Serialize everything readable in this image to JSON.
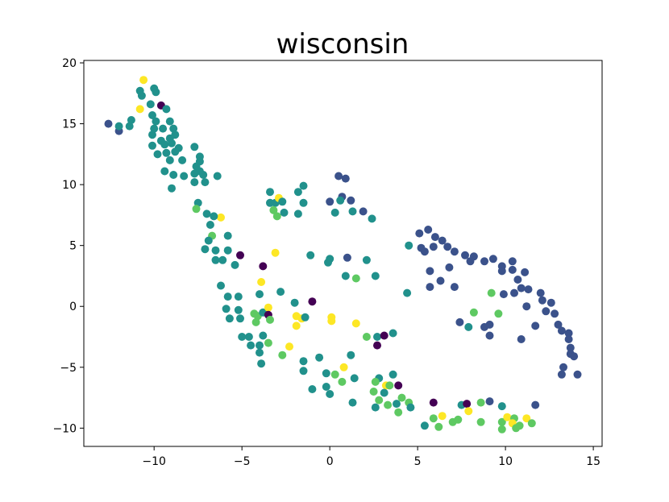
{
  "chart_data": {
    "type": "scatter",
    "title": "wisconsin",
    "xlabel": "",
    "ylabel": "",
    "xlim": [
      -14,
      15.5
    ],
    "ylim": [
      -11.5,
      20.2
    ],
    "xticks": [
      -10,
      -5,
      0,
      5,
      10,
      15
    ],
    "yticks": [
      -10,
      -5,
      0,
      5,
      10,
      15,
      20
    ],
    "grid": false,
    "legend": "none",
    "colormap": "viridis",
    "colors": {
      "c0": "#440154",
      "c1": "#3b528b",
      "c2": "#21918c",
      "c3": "#5ec962",
      "c4": "#fde725"
    },
    "points": [
      {
        "x": -12.6,
        "y": 15.0,
        "c": 1
      },
      {
        "x": -12.0,
        "y": 14.4,
        "c": 1
      },
      {
        "x": -12.0,
        "y": 14.8,
        "c": 2
      },
      {
        "x": -11.3,
        "y": 15.3,
        "c": 2
      },
      {
        "x": -11.4,
        "y": 14.8,
        "c": 2
      },
      {
        "x": -10.8,
        "y": 16.2,
        "c": 4
      },
      {
        "x": -10.6,
        "y": 18.6,
        "c": 4
      },
      {
        "x": -10.8,
        "y": 17.7,
        "c": 2
      },
      {
        "x": -10.7,
        "y": 17.3,
        "c": 2
      },
      {
        "x": -10.0,
        "y": 17.9,
        "c": 2
      },
      {
        "x": -9.9,
        "y": 17.6,
        "c": 2
      },
      {
        "x": -10.2,
        "y": 16.6,
        "c": 2
      },
      {
        "x": -9.6,
        "y": 16.5,
        "c": 0
      },
      {
        "x": -9.3,
        "y": 16.2,
        "c": 2
      },
      {
        "x": -10.1,
        "y": 15.7,
        "c": 2
      },
      {
        "x": -9.9,
        "y": 15.2,
        "c": 2
      },
      {
        "x": -10.0,
        "y": 14.6,
        "c": 2
      },
      {
        "x": -10.1,
        "y": 14.1,
        "c": 2
      },
      {
        "x": -9.5,
        "y": 14.6,
        "c": 2
      },
      {
        "x": -9.1,
        "y": 15.2,
        "c": 2
      },
      {
        "x": -8.9,
        "y": 14.6,
        "c": 2
      },
      {
        "x": -9.6,
        "y": 13.6,
        "c": 2
      },
      {
        "x": -9.1,
        "y": 13.8,
        "c": 2
      },
      {
        "x": -8.8,
        "y": 14.1,
        "c": 2
      },
      {
        "x": -10.1,
        "y": 13.2,
        "c": 2
      },
      {
        "x": -9.4,
        "y": 13.3,
        "c": 2
      },
      {
        "x": -9.0,
        "y": 13.4,
        "c": 2
      },
      {
        "x": -8.6,
        "y": 13.0,
        "c": 2
      },
      {
        "x": -8.8,
        "y": 12.7,
        "c": 2
      },
      {
        "x": -9.8,
        "y": 12.5,
        "c": 2
      },
      {
        "x": -9.3,
        "y": 12.6,
        "c": 2
      },
      {
        "x": -9.1,
        "y": 12.0,
        "c": 2
      },
      {
        "x": -8.4,
        "y": 12.0,
        "c": 2
      },
      {
        "x": -7.7,
        "y": 13.1,
        "c": 2
      },
      {
        "x": -7.4,
        "y": 12.3,
        "c": 2
      },
      {
        "x": -7.4,
        "y": 11.9,
        "c": 2
      },
      {
        "x": -7.6,
        "y": 11.5,
        "c": 2
      },
      {
        "x": -7.4,
        "y": 11.1,
        "c": 2
      },
      {
        "x": -9.4,
        "y": 11.1,
        "c": 2
      },
      {
        "x": -8.9,
        "y": 10.8,
        "c": 2
      },
      {
        "x": -8.3,
        "y": 10.7,
        "c": 2
      },
      {
        "x": -7.7,
        "y": 10.9,
        "c": 2
      },
      {
        "x": -7.2,
        "y": 10.8,
        "c": 2
      },
      {
        "x": -7.7,
        "y": 10.2,
        "c": 2
      },
      {
        "x": -7.1,
        "y": 10.2,
        "c": 2
      },
      {
        "x": -6.4,
        "y": 10.7,
        "c": 2
      },
      {
        "x": -9.0,
        "y": 9.7,
        "c": 2
      },
      {
        "x": -7.5,
        "y": 8.5,
        "c": 2
      },
      {
        "x": -7.6,
        "y": 8.0,
        "c": 3
      },
      {
        "x": -7.0,
        "y": 7.6,
        "c": 2
      },
      {
        "x": -6.2,
        "y": 7.3,
        "c": 4
      },
      {
        "x": -6.6,
        "y": 7.4,
        "c": 2
      },
      {
        "x": -6.8,
        "y": 6.7,
        "c": 2
      },
      {
        "x": -6.7,
        "y": 5.8,
        "c": 3
      },
      {
        "x": -6.9,
        "y": 5.4,
        "c": 2
      },
      {
        "x": -5.8,
        "y": 5.8,
        "c": 2
      },
      {
        "x": -7.1,
        "y": 4.7,
        "c": 2
      },
      {
        "x": -6.5,
        "y": 4.6,
        "c": 2
      },
      {
        "x": -5.8,
        "y": 4.6,
        "c": 2
      },
      {
        "x": -6.5,
        "y": 3.8,
        "c": 2
      },
      {
        "x": -6.1,
        "y": 3.8,
        "c": 2
      },
      {
        "x": -5.4,
        "y": 3.4,
        "c": 2
      },
      {
        "x": -5.1,
        "y": 4.2,
        "c": 0
      },
      {
        "x": -6.2,
        "y": 1.7,
        "c": 2
      },
      {
        "x": -5.8,
        "y": 0.8,
        "c": 2
      },
      {
        "x": -5.2,
        "y": 0.8,
        "c": 2
      },
      {
        "x": -5.9,
        "y": -0.2,
        "c": 2
      },
      {
        "x": -5.2,
        "y": -0.3,
        "c": 2
      },
      {
        "x": -5.7,
        "y": -1.0,
        "c": 2
      },
      {
        "x": -5.1,
        "y": -1.0,
        "c": 2
      },
      {
        "x": -4.3,
        "y": -0.6,
        "c": 3
      },
      {
        "x": -4.1,
        "y": -0.8,
        "c": 3
      },
      {
        "x": -4.2,
        "y": -1.3,
        "c": 3
      },
      {
        "x": -3.8,
        "y": -0.5,
        "c": 2
      },
      {
        "x": -3.5,
        "y": -0.1,
        "c": 4
      },
      {
        "x": -3.5,
        "y": -0.7,
        "c": 0
      },
      {
        "x": -3.4,
        "y": -1.1,
        "c": 3
      },
      {
        "x": -4.0,
        "y": 1.0,
        "c": 2
      },
      {
        "x": -3.9,
        "y": 2.0,
        "c": 4
      },
      {
        "x": -3.8,
        "y": 3.3,
        "c": 0
      },
      {
        "x": -3.1,
        "y": 4.4,
        "c": 4
      },
      {
        "x": -2.8,
        "y": 1.2,
        "c": 2
      },
      {
        "x": -5.0,
        "y": -2.5,
        "c": 2
      },
      {
        "x": -4.6,
        "y": -2.5,
        "c": 2
      },
      {
        "x": -4.5,
        "y": -3.2,
        "c": 2
      },
      {
        "x": -4.0,
        "y": -3.2,
        "c": 2
      },
      {
        "x": -3.8,
        "y": -2.4,
        "c": 2
      },
      {
        "x": -4.0,
        "y": -3.8,
        "c": 2
      },
      {
        "x": -3.5,
        "y": -3.0,
        "c": 3
      },
      {
        "x": -3.9,
        "y": -4.7,
        "c": 2
      },
      {
        "x": -2.7,
        "y": -4.0,
        "c": 3
      },
      {
        "x": -2.3,
        "y": -3.3,
        "c": 4
      },
      {
        "x": -3.4,
        "y": 8.5,
        "c": 2
      },
      {
        "x": -3.4,
        "y": 9.4,
        "c": 2
      },
      {
        "x": -3.1,
        "y": 8.5,
        "c": 2
      },
      {
        "x": -2.9,
        "y": 8.9,
        "c": 4
      },
      {
        "x": -2.7,
        "y": 8.6,
        "c": 2
      },
      {
        "x": -3.2,
        "y": 7.9,
        "c": 3
      },
      {
        "x": -3.0,
        "y": 7.4,
        "c": 3
      },
      {
        "x": -2.6,
        "y": 7.7,
        "c": 2
      },
      {
        "x": -1.8,
        "y": 9.4,
        "c": 2
      },
      {
        "x": -1.5,
        "y": 9.9,
        "c": 2
      },
      {
        "x": -1.5,
        "y": 8.5,
        "c": 2
      },
      {
        "x": -1.8,
        "y": 7.6,
        "c": 2
      },
      {
        "x": -2.0,
        "y": 0.3,
        "c": 2
      },
      {
        "x": -1.6,
        "y": -1.0,
        "c": 4
      },
      {
        "x": -1.4,
        "y": -0.9,
        "c": 2
      },
      {
        "x": -1.9,
        "y": -0.8,
        "c": 4
      },
      {
        "x": -1.9,
        "y": -1.6,
        "c": 4
      },
      {
        "x": -1.0,
        "y": 0.4,
        "c": 0
      },
      {
        "x": -1.1,
        "y": 4.2,
        "c": 2
      },
      {
        "x": -0.1,
        "y": 3.6,
        "c": 2
      },
      {
        "x": 0.0,
        "y": 3.9,
        "c": 2
      },
      {
        "x": -1.5,
        "y": -4.5,
        "c": 2
      },
      {
        "x": -0.6,
        "y": -4.2,
        "c": 2
      },
      {
        "x": -1.5,
        "y": -5.3,
        "c": 2
      },
      {
        "x": -0.2,
        "y": -5.5,
        "c": 2
      },
      {
        "x": -1.0,
        "y": -6.8,
        "c": 2
      },
      {
        "x": -0.2,
        "y": -6.6,
        "c": 2
      },
      {
        "x": 0.1,
        "y": -0.9,
        "c": 4
      },
      {
        "x": 0.1,
        "y": -1.2,
        "c": 4
      },
      {
        "x": 0.3,
        "y": -5.6,
        "c": 3
      },
      {
        "x": 0.0,
        "y": -7.2,
        "c": 2
      },
      {
        "x": 0.7,
        "y": -6.2,
        "c": 3
      },
      {
        "x": 0.8,
        "y": -5.0,
        "c": 4
      },
      {
        "x": 1.2,
        "y": -4.0,
        "c": 2
      },
      {
        "x": 1.5,
        "y": -1.4,
        "c": 4
      },
      {
        "x": 1.4,
        "y": -5.9,
        "c": 2
      },
      {
        "x": 1.3,
        "y": -7.9,
        "c": 2
      },
      {
        "x": 0.5,
        "y": 10.7,
        "c": 1
      },
      {
        "x": 0.9,
        "y": 10.5,
        "c": 1
      },
      {
        "x": 0.0,
        "y": 8.6,
        "c": 1
      },
      {
        "x": 0.7,
        "y": 9.0,
        "c": 1
      },
      {
        "x": 0.6,
        "y": 8.7,
        "c": 2
      },
      {
        "x": 1.2,
        "y": 8.7,
        "c": 1
      },
      {
        "x": 0.3,
        "y": 7.7,
        "c": 2
      },
      {
        "x": 1.3,
        "y": 7.8,
        "c": 2
      },
      {
        "x": 1.9,
        "y": 7.8,
        "c": 1
      },
      {
        "x": 2.4,
        "y": 7.2,
        "c": 2
      },
      {
        "x": 1.0,
        "y": 4.0,
        "c": 1
      },
      {
        "x": 2.1,
        "y": 3.8,
        "c": 2
      },
      {
        "x": 0.9,
        "y": 2.5,
        "c": 2
      },
      {
        "x": 1.5,
        "y": 2.3,
        "c": 3
      },
      {
        "x": 2.6,
        "y": 2.5,
        "c": 2
      },
      {
        "x": 2.1,
        "y": -2.5,
        "c": 3
      },
      {
        "x": 2.7,
        "y": -2.5,
        "c": 2
      },
      {
        "x": 2.7,
        "y": -3.2,
        "c": 0
      },
      {
        "x": 3.1,
        "y": -2.4,
        "c": 0
      },
      {
        "x": 3.6,
        "y": -2.2,
        "c": 2
      },
      {
        "x": 2.8,
        "y": -5.9,
        "c": 2
      },
      {
        "x": 2.6,
        "y": -6.2,
        "c": 3
      },
      {
        "x": 3.2,
        "y": -6.5,
        "c": 4
      },
      {
        "x": 3.6,
        "y": -5.6,
        "c": 2
      },
      {
        "x": 3.4,
        "y": -6.5,
        "c": 3
      },
      {
        "x": 3.9,
        "y": -6.5,
        "c": 0
      },
      {
        "x": 2.5,
        "y": -7.0,
        "c": 3
      },
      {
        "x": 3.1,
        "y": -7.1,
        "c": 2
      },
      {
        "x": 2.8,
        "y": -7.7,
        "c": 3
      },
      {
        "x": 3.3,
        "y": -8.1,
        "c": 3
      },
      {
        "x": 3.8,
        "y": -8.0,
        "c": 2
      },
      {
        "x": 2.6,
        "y": -8.3,
        "c": 2
      },
      {
        "x": 4.1,
        "y": -7.5,
        "c": 3
      },
      {
        "x": 4.5,
        "y": -7.9,
        "c": 3
      },
      {
        "x": 3.9,
        "y": -8.7,
        "c": 3
      },
      {
        "x": 4.6,
        "y": -8.3,
        "c": 2
      },
      {
        "x": 4.5,
        "y": 5.0,
        "c": 2
      },
      {
        "x": 4.4,
        "y": 1.1,
        "c": 2
      },
      {
        "x": 5.1,
        "y": 6.0,
        "c": 1
      },
      {
        "x": 5.2,
        "y": 4.8,
        "c": 1
      },
      {
        "x": 5.4,
        "y": 4.5,
        "c": 1
      },
      {
        "x": 5.6,
        "y": 6.3,
        "c": 1
      },
      {
        "x": 5.9,
        "y": 4.9,
        "c": 1
      },
      {
        "x": 6.0,
        "y": 5.7,
        "c": 1
      },
      {
        "x": 6.4,
        "y": 5.4,
        "c": 1
      },
      {
        "x": 6.7,
        "y": 4.9,
        "c": 1
      },
      {
        "x": 7.1,
        "y": 4.5,
        "c": 1
      },
      {
        "x": 5.7,
        "y": 2.9,
        "c": 1
      },
      {
        "x": 5.7,
        "y": 1.6,
        "c": 1
      },
      {
        "x": 6.3,
        "y": 2.1,
        "c": 1
      },
      {
        "x": 6.8,
        "y": 3.2,
        "c": 1
      },
      {
        "x": 7.1,
        "y": 1.6,
        "c": 1
      },
      {
        "x": 7.7,
        "y": 4.2,
        "c": 1
      },
      {
        "x": 8.0,
        "y": 3.7,
        "c": 1
      },
      {
        "x": 8.2,
        "y": 4.1,
        "c": 1
      },
      {
        "x": 7.4,
        "y": -1.3,
        "c": 1
      },
      {
        "x": 7.9,
        "y": -1.7,
        "c": 2
      },
      {
        "x": 8.2,
        "y": -0.5,
        "c": 3
      },
      {
        "x": 8.8,
        "y": 3.7,
        "c": 1
      },
      {
        "x": 9.3,
        "y": 3.9,
        "c": 1
      },
      {
        "x": 9.2,
        "y": 1.1,
        "c": 3
      },
      {
        "x": 8.8,
        "y": -1.7,
        "c": 1
      },
      {
        "x": 9.1,
        "y": -1.5,
        "c": 1
      },
      {
        "x": 9.1,
        "y": -2.4,
        "c": 1
      },
      {
        "x": 9.6,
        "y": -0.6,
        "c": 3
      },
      {
        "x": 9.8,
        "y": 3.3,
        "c": 1
      },
      {
        "x": 9.8,
        "y": 2.9,
        "c": 1
      },
      {
        "x": 9.9,
        "y": 1.0,
        "c": 1
      },
      {
        "x": 10.4,
        "y": 3.7,
        "c": 1
      },
      {
        "x": 10.4,
        "y": 3.0,
        "c": 1
      },
      {
        "x": 10.7,
        "y": 2.2,
        "c": 1
      },
      {
        "x": 10.5,
        "y": 1.1,
        "c": 1
      },
      {
        "x": 10.9,
        "y": 1.5,
        "c": 1
      },
      {
        "x": 11.1,
        "y": 2.8,
        "c": 1
      },
      {
        "x": 11.3,
        "y": 1.4,
        "c": 1
      },
      {
        "x": 11.2,
        "y": 0.0,
        "c": 1
      },
      {
        "x": 11.7,
        "y": -1.6,
        "c": 1
      },
      {
        "x": 10.9,
        "y": -2.7,
        "c": 1
      },
      {
        "x": 12.0,
        "y": 1.1,
        "c": 1
      },
      {
        "x": 12.1,
        "y": 0.5,
        "c": 1
      },
      {
        "x": 12.6,
        "y": 0.3,
        "c": 1
      },
      {
        "x": 12.3,
        "y": -0.4,
        "c": 1
      },
      {
        "x": 12.8,
        "y": -0.6,
        "c": 1
      },
      {
        "x": 13.0,
        "y": -1.5,
        "c": 1
      },
      {
        "x": 13.2,
        "y": -2.0,
        "c": 1
      },
      {
        "x": 13.6,
        "y": -2.2,
        "c": 1
      },
      {
        "x": 13.6,
        "y": -2.7,
        "c": 1
      },
      {
        "x": 13.7,
        "y": -3.4,
        "c": 1
      },
      {
        "x": 13.7,
        "y": -3.9,
        "c": 1
      },
      {
        "x": 13.9,
        "y": -4.1,
        "c": 1
      },
      {
        "x": 13.3,
        "y": -5.0,
        "c": 1
      },
      {
        "x": 13.2,
        "y": -5.6,
        "c": 1
      },
      {
        "x": 14.1,
        "y": -5.6,
        "c": 1
      },
      {
        "x": 5.4,
        "y": -9.8,
        "c": 2
      },
      {
        "x": 5.9,
        "y": -7.9,
        "c": 0
      },
      {
        "x": 5.9,
        "y": -9.2,
        "c": 3
      },
      {
        "x": 6.2,
        "y": -9.9,
        "c": 3
      },
      {
        "x": 6.4,
        "y": -9.0,
        "c": 4
      },
      {
        "x": 7.0,
        "y": -9.5,
        "c": 3
      },
      {
        "x": 7.3,
        "y": -9.3,
        "c": 3
      },
      {
        "x": 7.5,
        "y": -8.1,
        "c": 2
      },
      {
        "x": 7.8,
        "y": -8.0,
        "c": 0
      },
      {
        "x": 7.9,
        "y": -8.6,
        "c": 4
      },
      {
        "x": 8.6,
        "y": -7.9,
        "c": 3
      },
      {
        "x": 8.6,
        "y": -9.5,
        "c": 3
      },
      {
        "x": 9.1,
        "y": -7.8,
        "c": 1
      },
      {
        "x": 9.8,
        "y": -8.2,
        "c": 2
      },
      {
        "x": 9.8,
        "y": -9.5,
        "c": 3
      },
      {
        "x": 9.8,
        "y": -10.1,
        "c": 3
      },
      {
        "x": 10.1,
        "y": -9.1,
        "c": 4
      },
      {
        "x": 10.5,
        "y": -9.2,
        "c": 3
      },
      {
        "x": 10.4,
        "y": -9.6,
        "c": 4
      },
      {
        "x": 10.6,
        "y": -10.0,
        "c": 3
      },
      {
        "x": 10.8,
        "y": -9.8,
        "c": 3
      },
      {
        "x": 11.2,
        "y": -9.2,
        "c": 4
      },
      {
        "x": 11.5,
        "y": -9.6,
        "c": 3
      },
      {
        "x": 11.7,
        "y": -8.1,
        "c": 1
      }
    ]
  }
}
